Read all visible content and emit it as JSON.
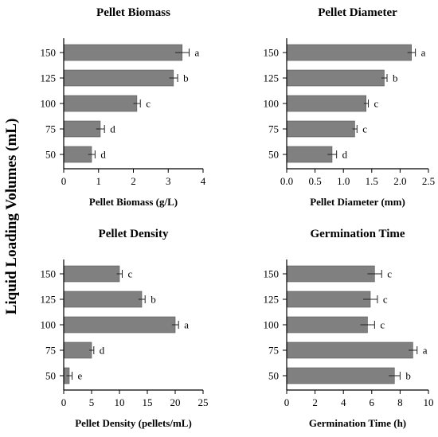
{
  "figure": {
    "shared_ylabel": "Liquid Loading Volumes (mL)"
  },
  "chart_data": [
    {
      "type": "bar",
      "orientation": "horizontal",
      "title": "Pellet Biomass",
      "xlabel": "Pellet Biomass (g/L)",
      "categories": [
        "150",
        "125",
        "100",
        "75",
        "50"
      ],
      "values": [
        3.4,
        3.15,
        2.1,
        1.05,
        0.8
      ],
      "errors": [
        0.2,
        0.12,
        0.1,
        0.12,
        0.1
      ],
      "labels": [
        "a",
        "b",
        "c",
        "d",
        "d"
      ],
      "xlim": [
        0,
        4
      ],
      "xticks": [
        "0",
        "1",
        "2",
        "3",
        "4"
      ],
      "bar_color": "#808080"
    },
    {
      "type": "bar",
      "orientation": "horizontal",
      "title": "Pellet Diameter",
      "xlabel": "Pellet Diameter (mm)",
      "categories": [
        "150",
        "125",
        "100",
        "75",
        "50"
      ],
      "values": [
        2.2,
        1.72,
        1.4,
        1.2,
        0.8
      ],
      "errors": [
        0.07,
        0.05,
        0.04,
        0.04,
        0.08
      ],
      "labels": [
        "a",
        "b",
        "c",
        "c",
        "d"
      ],
      "xlim": [
        0,
        2.5
      ],
      "xticks": [
        "0.0",
        "0.5",
        "1.0",
        "1.5",
        "2.0",
        "2.5"
      ],
      "bar_color": "#808080"
    },
    {
      "type": "bar",
      "orientation": "horizontal",
      "title": "Pellet Density",
      "xlabel": "Pellet Density (pellets/mL)",
      "categories": [
        "150",
        "125",
        "100",
        "75",
        "50"
      ],
      "values": [
        10,
        14,
        20,
        5,
        1
      ],
      "errors": [
        0.5,
        0.6,
        0.6,
        0.4,
        0.5
      ],
      "labels": [
        "c",
        "b",
        "a",
        "d",
        "e"
      ],
      "xlim": [
        0,
        25
      ],
      "xticks": [
        "0",
        "5",
        "10",
        "15",
        "20",
        "25"
      ],
      "bar_color": "#808080"
    },
    {
      "type": "bar",
      "orientation": "horizontal",
      "title": "Germination Time",
      "xlabel": "Germination Time (h)",
      "categories": [
        "150",
        "125",
        "100",
        "75",
        "50"
      ],
      "values": [
        6.2,
        5.9,
        5.7,
        8.9,
        7.6
      ],
      "errors": [
        0.5,
        0.5,
        0.5,
        0.3,
        0.4
      ],
      "labels": [
        "c",
        "c",
        "c",
        "a",
        "b"
      ],
      "xlim": [
        0,
        10
      ],
      "xticks": [
        "0",
        "2",
        "4",
        "6",
        "8",
        "10"
      ],
      "bar_color": "#808080"
    }
  ]
}
